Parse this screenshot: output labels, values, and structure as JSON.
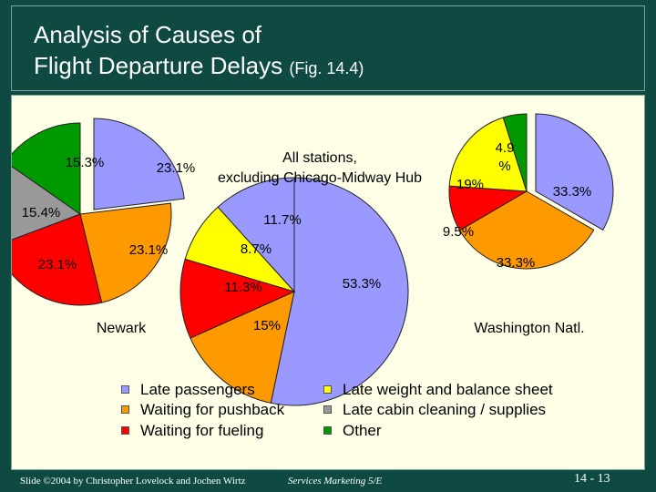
{
  "title": {
    "line1": "Analysis of Causes of",
    "line2": "Flight Departure Delays",
    "fig": "(Fig. 14.4)"
  },
  "chart_data": [
    {
      "type": "pie",
      "title": "Newark",
      "categories": [
        "Late passengers",
        "Waiting for pushback",
        "Waiting for fueling",
        "Late cabin cleaning / supplies",
        "Other"
      ],
      "values": [
        23.1,
        23.1,
        23.1,
        15.4,
        15.3
      ],
      "labels": [
        "23.1%",
        "23.1%",
        "23.1%",
        "15.4%",
        "15.3%"
      ],
      "exploded": "Late passengers"
    },
    {
      "type": "pie",
      "title": "All stations, excluding Chicago-Midway Hub",
      "categories": [
        "Late passengers",
        "Waiting for pushback",
        "Waiting for fueling",
        "Late weight and balance sheet"
      ],
      "values": [
        53.3,
        15,
        11.3,
        8.7,
        11.7
      ],
      "categories_full": [
        "Late passengers",
        "Waiting for pushback",
        "Waiting for fueling",
        "Late weight and balance sheet",
        "Late passengers"
      ],
      "labels": [
        "53.3%",
        "15%",
        "11.3%",
        "8.7%",
        "11.7%"
      ]
    },
    {
      "type": "pie",
      "title": "Washington Natl.",
      "categories": [
        "Late passengers",
        "Waiting for pushback",
        "Waiting for fueling",
        "Late weight and balance sheet",
        "Other"
      ],
      "values": [
        33.3,
        33.3,
        9.5,
        19,
        4.9
      ],
      "labels": [
        "33.3%",
        "33.3%",
        "9.5%",
        "19%",
        "4.9 %"
      ],
      "exploded": "Late passengers"
    }
  ],
  "legend": [
    {
      "label": "Late passengers",
      "color": "#9999ff"
    },
    {
      "label": "Waiting for pushback",
      "color": "#ff9900"
    },
    {
      "label": "Waiting for fueling",
      "color": "#ff0000"
    },
    {
      "label": "Late weight and balance sheet",
      "color": "#ffff00"
    },
    {
      "label": "Late cabin cleaning / supplies",
      "color": "#999999"
    },
    {
      "label": "Other",
      "color": "#009900"
    }
  ],
  "footer": {
    "left": "Slide ©2004 by Christopher Lovelock and Jochen Wirtz",
    "mid": "Services Marketing 5/E",
    "right": "14 - 13"
  }
}
